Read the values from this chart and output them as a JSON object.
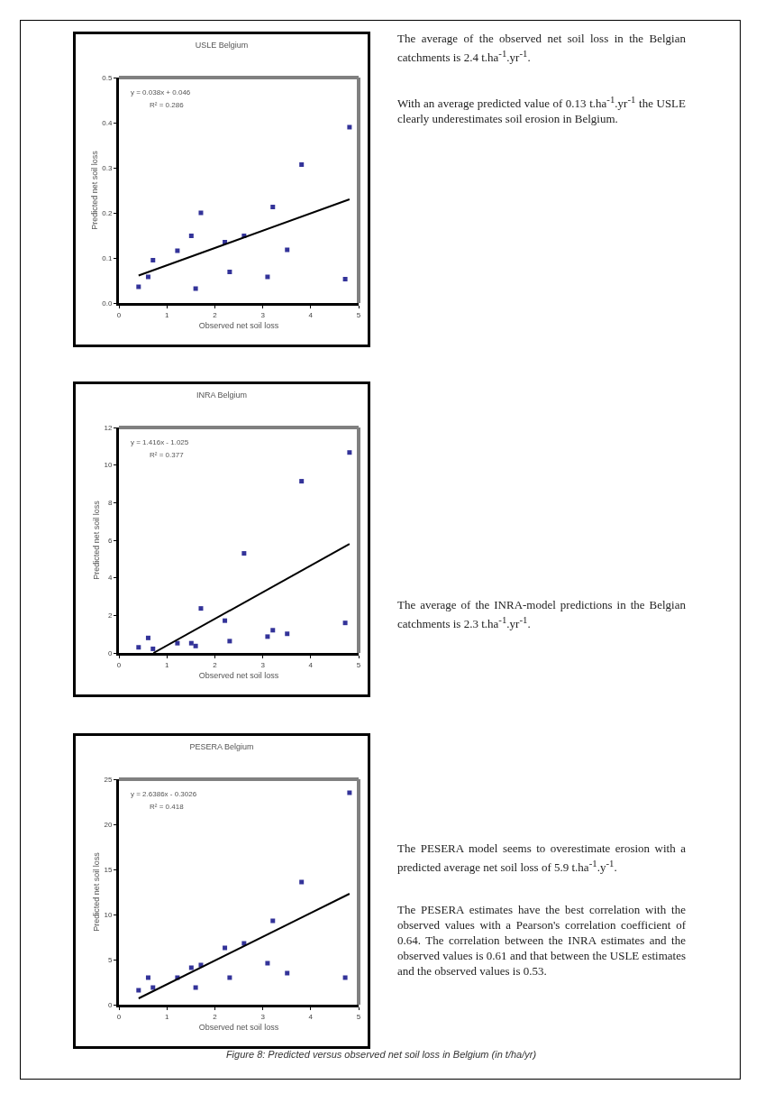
{
  "chart_data": [
    {
      "type": "scatter",
      "title": "USLE Belgium",
      "xlabel": "Observed net soil loss",
      "ylabel": "Predicted net soil loss",
      "xlim": [
        0,
        5
      ],
      "xticks": [
        0,
        1,
        2,
        3,
        4,
        5
      ],
      "ylim": [
        0,
        0.5
      ],
      "yticks": [
        {
          "value": 0,
          "label": "0.0"
        },
        0.1,
        0.2,
        0.3,
        0.4,
        0.5
      ],
      "grid": false,
      "legend": false,
      "annotations": [
        "y = 0.038x + 0.046",
        "R² = 0.286"
      ],
      "series": [
        {
          "color": "#333399",
          "marker": "square",
          "x": [
            0.41,
            0.61,
            0.71,
            1.22,
            1.51,
            1.71,
            1.6,
            2.21,
            2.31,
            2.61,
            3.1,
            3.21,
            3.51,
            3.81,
            4.72,
            4.81
          ],
          "values": [
            0.036,
            0.058,
            0.095,
            0.116,
            0.149,
            0.2,
            0.032,
            0.135,
            0.069,
            0.149,
            0.058,
            0.213,
            0.118,
            0.307,
            0.053,
            0.39
          ]
        },
        {
          "type": "line",
          "marker": "none",
          "color": "#000000",
          "line_style": "solid",
          "x": [
            0.41,
            4.81
          ],
          "values": [
            0.061,
            0.23
          ]
        }
      ]
    },
    {
      "type": "other",
      "annotations": [
        "The average of the observed net soil loss in the Belgian catchments is 2.4 t.ha$^{-1}$.yr$^{-1}$.",
        "With an average predicted value of 0.13 t.ha$^{-1}$.yr$^{-1}$ the USLE clearly underestimates soil erosion in Belgium."
      ]
    },
    {
      "type": "scatter",
      "title": "INRA Belgium",
      "xlabel": "Observed net soil loss",
      "ylabel": "Predicted net soil loss",
      "xlim": [
        0,
        5
      ],
      "xticks": [
        0,
        1,
        2,
        3,
        4,
        5
      ],
      "ylim": [
        0,
        12
      ],
      "yticks": [
        0,
        2,
        4,
        6,
        8,
        10,
        12
      ],
      "grid": false,
      "legend": false,
      "annotations": [
        "y = 1.416x - 1.025",
        "R² = 0.377"
      ],
      "series": [
        {
          "color": "#333399",
          "marker": "square",
          "x": [
            0.41,
            0.61,
            0.71,
            1.22,
            1.51,
            1.71,
            1.6,
            2.21,
            2.31,
            2.61,
            3.1,
            3.21,
            3.51,
            3.81,
            4.72,
            4.81
          ],
          "values": [
            0.3,
            0.8,
            0.22,
            0.52,
            0.52,
            2.37,
            0.37,
            1.72,
            0.63,
            5.3,
            0.87,
            1.21,
            1.02,
            9.14,
            1.6,
            10.67
          ]
        },
        {
          "type": "line",
          "marker": "none",
          "color": "#000000",
          "line_style": "solid",
          "x": [
            0.72,
            4.81
          ],
          "values": [
            0,
            5.8
          ]
        }
      ]
    },
    {
      "type": "other",
      "annotations": [
        "The average of the INRA-model predictions in the Belgian catchments is 2.3 t.ha$^{-1}$.yr$^{-1}$."
      ]
    },
    {
      "type": "scatter",
      "title": "PESERA Belgium",
      "xlabel": "Observed net soil loss",
      "ylabel": "Predicted net soil loss",
      "xlim": [
        0,
        5
      ],
      "xticks": [
        0,
        1,
        2,
        3,
        4,
        5
      ],
      "ylim": [
        0,
        25
      ],
      "yticks": [
        0,
        5,
        10,
        15,
        20,
        25
      ],
      "grid": false,
      "legend": false,
      "annotations": [
        "y = 2.6386x - 0.3026",
        "R² = 0.418"
      ],
      "series": [
        {
          "color": "#333399",
          "marker": "square",
          "x": [
            0.41,
            0.61,
            0.71,
            1.22,
            1.51,
            1.71,
            1.6,
            2.21,
            2.31,
            2.61,
            3.1,
            3.21,
            3.51,
            3.81,
            4.72,
            4.81
          ],
          "values": [
            1.6,
            3,
            1.9,
            3,
            4.1,
            4.4,
            1.9,
            6.3,
            3,
            6.8,
            4.6,
            9.3,
            3.5,
            13.6,
            3,
            23.5
          ]
        },
        {
          "type": "line",
          "marker": "none",
          "color": "#000000",
          "line_style": "solid",
          "x": [
            0.41,
            4.81
          ],
          "values": [
            0.7,
            12.3
          ]
        }
      ]
    },
    {
      "type": "other",
      "annotations": [
        "The PESERA model seems to overestimate erosion with a predicted average net soil loss of 5.9 t.ha$^{-1}$.y$^{-1}$.",
        "The PESERA estimates have the best correlation with the observed values with a Pearson's correlation coefficient of 0.64. The correlation between the INRA estimates and the observed values is 0.61 and that between the USLE estimates and the observed values is 0.53."
      ]
    },
    {
      "type": "other",
      "annotations": [
        "Figure 8: Predicted versus observed net soil loss in Belgium (in t/ha/yr)"
      ]
    }
  ]
}
